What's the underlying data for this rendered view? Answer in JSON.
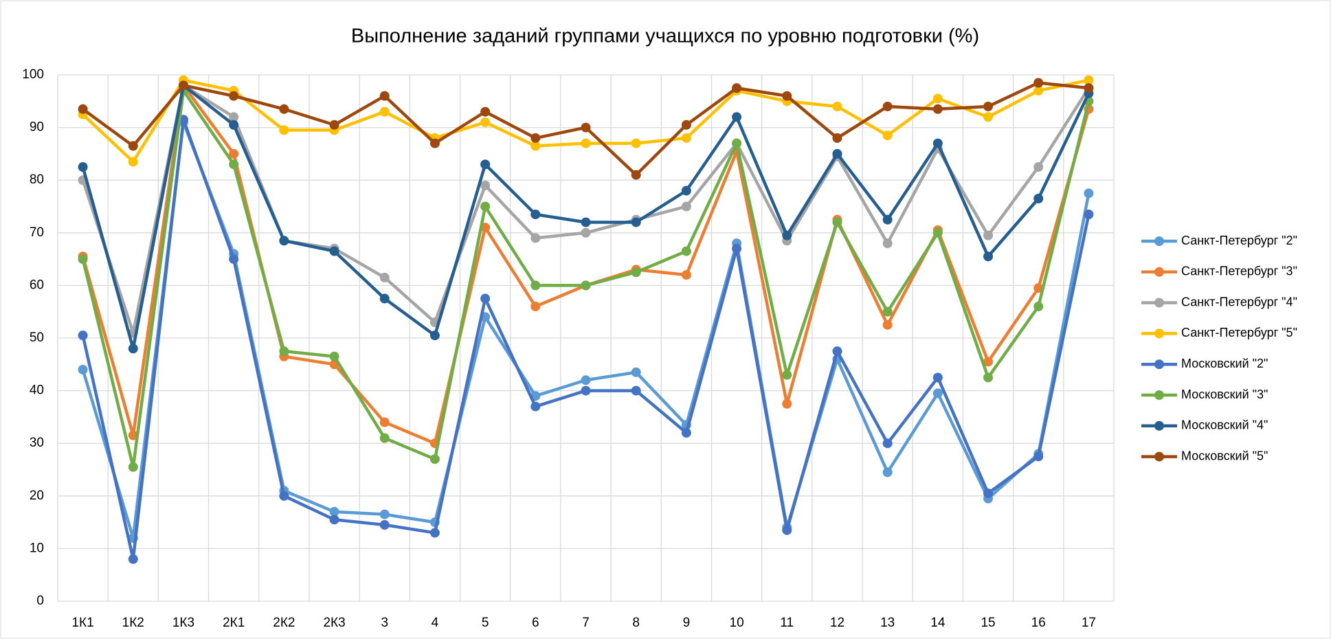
{
  "chart_data": {
    "type": "line",
    "title": "Выполнение заданий группами учащихся по уровню подготовки (%)",
    "categories": [
      "1К1",
      "1К2",
      "1К3",
      "2К1",
      "2К2",
      "2К3",
      "3",
      "4",
      "5",
      "6",
      "7",
      "8",
      "9",
      "10",
      "11",
      "12",
      "13",
      "14",
      "15",
      "16",
      "17"
    ],
    "ylim": [
      0,
      100
    ],
    "yticks": [
      0,
      10,
      20,
      30,
      40,
      50,
      60,
      70,
      80,
      90,
      100
    ],
    "grid": true,
    "legend": "right",
    "series": [
      {
        "name": "Санкт-Петербург \"2\"",
        "color": "#5b9bd5",
        "values": [
          44,
          12,
          91,
          66,
          21,
          17,
          16.5,
          15,
          54,
          39,
          42,
          43.5,
          33.5,
          68,
          14,
          46,
          24.5,
          39.5,
          19.5,
          28,
          77.5
        ]
      },
      {
        "name": "Санкт-Петербург \"3\"",
        "color": "#ed7d31",
        "values": [
          65.5,
          31.5,
          98,
          85,
          46.5,
          45,
          34,
          30,
          71,
          56,
          60,
          63,
          62,
          85.5,
          37.5,
          72.5,
          52.5,
          70.5,
          45.5,
          59.5,
          93.5
        ]
      },
      {
        "name": "Санкт-Петербург \"4\"",
        "color": "#a5a5a5",
        "values": [
          80,
          51,
          98,
          92,
          68.5,
          67,
          61.5,
          53,
          79,
          69,
          70,
          72.5,
          75,
          87,
          68.5,
          84.5,
          68,
          86,
          69.5,
          82.5,
          97.5
        ]
      },
      {
        "name": "Санкт-Петербург \"5\"",
        "color": "#ffc000",
        "values": [
          92.5,
          83.5,
          99,
          97,
          89.5,
          89.5,
          93,
          88,
          91,
          86.5,
          87,
          87,
          88,
          97,
          95,
          94,
          88.5,
          95.5,
          92,
          97,
          99
        ]
      },
      {
        "name": "Московский \"2\"",
        "color": "#4472c4",
        "values": [
          50.5,
          8,
          91.5,
          65,
          20,
          15.5,
          14.5,
          13,
          57.5,
          37,
          40,
          40,
          32,
          67,
          13.5,
          47.5,
          30,
          42.5,
          20.5,
          27.5,
          73.5
        ]
      },
      {
        "name": "Московский \"3\"",
        "color": "#70ad47",
        "values": [
          65,
          25.5,
          97,
          83,
          47.5,
          46.5,
          31,
          27,
          75,
          60,
          60,
          62.5,
          66.5,
          87,
          43,
          72,
          55,
          70,
          42.5,
          56,
          95
        ]
      },
      {
        "name": "Московский \"4\"",
        "color": "#255e91",
        "values": [
          82.5,
          48,
          98,
          90.5,
          68.5,
          66.5,
          57.5,
          50.5,
          83,
          73.5,
          72,
          72,
          78,
          92,
          69.5,
          85,
          72.5,
          87,
          65.5,
          76.5,
          96.5
        ]
      },
      {
        "name": "Московский \"5\"",
        "color": "#9e480e",
        "values": [
          93.5,
          86.5,
          98,
          96,
          93.5,
          90.5,
          96,
          87,
          93,
          88,
          90,
          81,
          90.5,
          97.5,
          96,
          88,
          94,
          93.5,
          94,
          98.5,
          97.5
        ]
      }
    ]
  }
}
